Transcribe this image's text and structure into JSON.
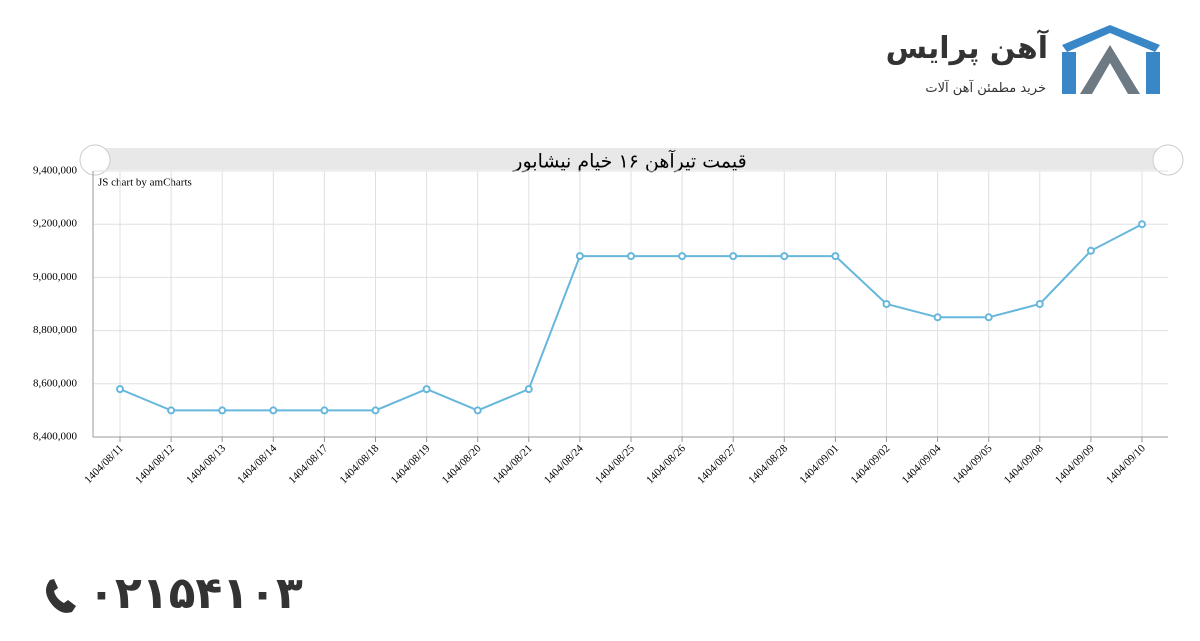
{
  "logo": {
    "name": "آهن پرایس",
    "tagline": "خرید مطمئن آهن آلات"
  },
  "phone": "۰۲۱۵۴۱۰۳",
  "chart_data": {
    "type": "line",
    "title": "قیمت تیرآهن ۱۶ خیام نیشابور",
    "credit": "JS chart by amCharts",
    "categories": [
      "1404/08/11",
      "1404/08/12",
      "1404/08/13",
      "1404/08/14",
      "1404/08/17",
      "1404/08/18",
      "1404/08/19",
      "1404/08/20",
      "1404/08/21",
      "1404/08/24",
      "1404/08/25",
      "1404/08/26",
      "1404/08/27",
      "1404/08/28",
      "1404/09/01",
      "1404/09/02",
      "1404/09/04",
      "1404/09/05",
      "1404/09/08",
      "1404/09/09",
      "1404/09/10"
    ],
    "values": [
      8580000,
      8500000,
      8500000,
      8500000,
      8500000,
      8500000,
      8580000,
      8500000,
      8580000,
      9080000,
      9080000,
      9080000,
      9080000,
      9080000,
      9080000,
      8900000,
      8850000,
      8850000,
      8900000,
      9100000,
      9200000
    ],
    "color": "#67b7dc",
    "ylim": [
      8400000,
      9400000
    ],
    "yticks": [
      {
        "value": 8400000,
        "label": "8,400,000"
      },
      {
        "value": 8600000,
        "label": "8,600,000"
      },
      {
        "value": 8800000,
        "label": "8,800,000"
      },
      {
        "value": 9000000,
        "label": "9,000,000"
      },
      {
        "value": 9200000,
        "label": "9,200,000"
      },
      {
        "value": 9400000,
        "label": "9,400,000"
      }
    ],
    "grid": true
  }
}
